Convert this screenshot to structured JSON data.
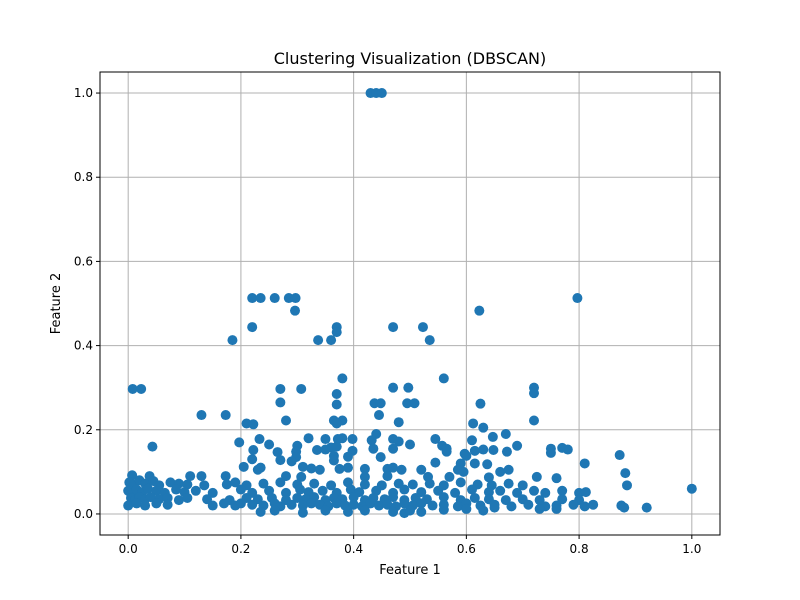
{
  "chart_data": {
    "type": "scatter",
    "title": "Clustering Visualization (DBSCAN)",
    "xlabel": "Feature 1",
    "ylabel": "Feature 2",
    "xlim": [
      -0.05,
      1.05
    ],
    "ylim": [
      -0.05,
      1.05
    ],
    "xticks": [
      0.0,
      0.2,
      0.4,
      0.6,
      0.8,
      1.0
    ],
    "yticks": [
      0.0,
      0.2,
      0.4,
      0.6,
      0.8,
      1.0
    ],
    "xtick_labels": [
      "0.0",
      "0.2",
      "0.4",
      "0.6",
      "0.8",
      "1.0"
    ],
    "ytick_labels": [
      "0.0",
      "0.2",
      "0.4",
      "0.6",
      "0.8",
      "1.0"
    ],
    "grid": true,
    "color": "#1f77b4",
    "points": [
      [
        0.43,
        1.0
      ],
      [
        0.44,
        1.0
      ],
      [
        0.45,
        1.0
      ],
      [
        0.22,
        0.513
      ],
      [
        0.235,
        0.513
      ],
      [
        0.26,
        0.513
      ],
      [
        0.285,
        0.513
      ],
      [
        0.297,
        0.513
      ],
      [
        0.797,
        0.513
      ],
      [
        0.296,
        0.483
      ],
      [
        0.623,
        0.483
      ],
      [
        0.22,
        0.444
      ],
      [
        0.37,
        0.444
      ],
      [
        0.47,
        0.444
      ],
      [
        0.523,
        0.444
      ],
      [
        0.37,
        0.432
      ],
      [
        0.185,
        0.413
      ],
      [
        0.337,
        0.413
      ],
      [
        0.36,
        0.413
      ],
      [
        0.535,
        0.413
      ],
      [
        0.38,
        0.322
      ],
      [
        0.56,
        0.322
      ],
      [
        0.008,
        0.297
      ],
      [
        0.023,
        0.297
      ],
      [
        0.27,
        0.297
      ],
      [
        0.307,
        0.297
      ],
      [
        0.47,
        0.3
      ],
      [
        0.497,
        0.3
      ],
      [
        0.72,
        0.3
      ],
      [
        0.72,
        0.287
      ],
      [
        0.37,
        0.285
      ],
      [
        0.437,
        0.263
      ],
      [
        0.448,
        0.263
      ],
      [
        0.495,
        0.263
      ],
      [
        0.508,
        0.263
      ],
      [
        0.625,
        0.262
      ],
      [
        0.27,
        0.265
      ],
      [
        0.37,
        0.26
      ],
      [
        0.13,
        0.235
      ],
      [
        0.173,
        0.235
      ],
      [
        0.445,
        0.235
      ],
      [
        0.28,
        0.222
      ],
      [
        0.365,
        0.222
      ],
      [
        0.38,
        0.222
      ],
      [
        0.48,
        0.218
      ],
      [
        0.72,
        0.222
      ],
      [
        0.21,
        0.215
      ],
      [
        0.222,
        0.213
      ],
      [
        0.37,
        0.215
      ],
      [
        0.612,
        0.215
      ],
      [
        0.63,
        0.205
      ],
      [
        0.44,
        0.19
      ],
      [
        0.67,
        0.19
      ],
      [
        0.38,
        0.18
      ],
      [
        0.233,
        0.178
      ],
      [
        0.32,
        0.18
      ],
      [
        0.35,
        0.178
      ],
      [
        0.372,
        0.178
      ],
      [
        0.398,
        0.178
      ],
      [
        0.432,
        0.175
      ],
      [
        0.47,
        0.178
      ],
      [
        0.48,
        0.172
      ],
      [
        0.545,
        0.178
      ],
      [
        0.61,
        0.175
      ],
      [
        0.647,
        0.183
      ],
      [
        0.043,
        0.16
      ],
      [
        0.197,
        0.17
      ],
      [
        0.25,
        0.165
      ],
      [
        0.3,
        0.162
      ],
      [
        0.36,
        0.158
      ],
      [
        0.37,
        0.16
      ],
      [
        0.5,
        0.165
      ],
      [
        0.557,
        0.162
      ],
      [
        0.565,
        0.155
      ],
      [
        0.69,
        0.162
      ],
      [
        0.75,
        0.155
      ],
      [
        0.77,
        0.157
      ],
      [
        0.78,
        0.153
      ],
      [
        0.222,
        0.152
      ],
      [
        0.265,
        0.147
      ],
      [
        0.298,
        0.148
      ],
      [
        0.335,
        0.152
      ],
      [
        0.35,
        0.153
      ],
      [
        0.398,
        0.15
      ],
      [
        0.435,
        0.155
      ],
      [
        0.47,
        0.155
      ],
      [
        0.565,
        0.148
      ],
      [
        0.597,
        0.143
      ],
      [
        0.615,
        0.15
      ],
      [
        0.63,
        0.153
      ],
      [
        0.648,
        0.152
      ],
      [
        0.672,
        0.148
      ],
      [
        0.75,
        0.145
      ],
      [
        0.872,
        0.14
      ],
      [
        0.365,
        0.138
      ],
      [
        0.298,
        0.135
      ],
      [
        0.39,
        0.136
      ],
      [
        0.448,
        0.135
      ],
      [
        0.6,
        0.138
      ],
      [
        0.22,
        0.13
      ],
      [
        0.27,
        0.128
      ],
      [
        0.29,
        0.125
      ],
      [
        0.365,
        0.127
      ],
      [
        0.545,
        0.122
      ],
      [
        0.59,
        0.12
      ],
      [
        0.615,
        0.12
      ],
      [
        0.637,
        0.118
      ],
      [
        0.81,
        0.12
      ],
      [
        0.205,
        0.112
      ],
      [
        0.23,
        0.105
      ],
      [
        0.235,
        0.11
      ],
      [
        0.31,
        0.112
      ],
      [
        0.325,
        0.108
      ],
      [
        0.34,
        0.105
      ],
      [
        0.375,
        0.107
      ],
      [
        0.39,
        0.11
      ],
      [
        0.42,
        0.107
      ],
      [
        0.46,
        0.107
      ],
      [
        0.47,
        0.11
      ],
      [
        0.485,
        0.105
      ],
      [
        0.52,
        0.105
      ],
      [
        0.585,
        0.105
      ],
      [
        0.595,
        0.1
      ],
      [
        0.66,
        0.1
      ],
      [
        0.675,
        0.105
      ],
      [
        0.882,
        0.097
      ],
      [
        0.007,
        0.092
      ],
      [
        0.038,
        0.09
      ],
      [
        0.11,
        0.09
      ],
      [
        0.13,
        0.09
      ],
      [
        0.173,
        0.09
      ],
      [
        0.28,
        0.09
      ],
      [
        0.307,
        0.088
      ],
      [
        0.42,
        0.088
      ],
      [
        0.46,
        0.09
      ],
      [
        0.532,
        0.088
      ],
      [
        0.57,
        0.088
      ],
      [
        0.64,
        0.087
      ],
      [
        0.725,
        0.088
      ],
      [
        0.76,
        0.085
      ],
      [
        0.002,
        0.075
      ],
      [
        0.01,
        0.07
      ],
      [
        0.02,
        0.08
      ],
      [
        0.03,
        0.072
      ],
      [
        0.045,
        0.078
      ],
      [
        0.055,
        0.068
      ],
      [
        0.075,
        0.075
      ],
      [
        0.09,
        0.072
      ],
      [
        0.105,
        0.07
      ],
      [
        0.135,
        0.068
      ],
      [
        0.175,
        0.07
      ],
      [
        0.19,
        0.075
      ],
      [
        0.21,
        0.068
      ],
      [
        0.24,
        0.072
      ],
      [
        0.27,
        0.075
      ],
      [
        0.3,
        0.07
      ],
      [
        0.33,
        0.072
      ],
      [
        0.36,
        0.068
      ],
      [
        0.39,
        0.075
      ],
      [
        0.42,
        0.07
      ],
      [
        0.45,
        0.068
      ],
      [
        0.48,
        0.072
      ],
      [
        0.505,
        0.07
      ],
      [
        0.535,
        0.072
      ],
      [
        0.56,
        0.068
      ],
      [
        0.59,
        0.075
      ],
      [
        0.62,
        0.07
      ],
      [
        0.645,
        0.068
      ],
      [
        0.675,
        0.072
      ],
      [
        0.7,
        0.068
      ],
      [
        0.885,
        0.068
      ],
      [
        0.0,
        0.055
      ],
      [
        0.008,
        0.05
      ],
      [
        0.015,
        0.058
      ],
      [
        0.025,
        0.052
      ],
      [
        0.035,
        0.06
      ],
      [
        0.05,
        0.055
      ],
      [
        0.065,
        0.05
      ],
      [
        0.085,
        0.058
      ],
      [
        0.1,
        0.052
      ],
      [
        0.12,
        0.055
      ],
      [
        0.15,
        0.05
      ],
      [
        0.2,
        0.058
      ],
      [
        0.22,
        0.05
      ],
      [
        0.25,
        0.055
      ],
      [
        0.28,
        0.05
      ],
      [
        0.305,
        0.058
      ],
      [
        0.32,
        0.052
      ],
      [
        0.345,
        0.055
      ],
      [
        0.37,
        0.05
      ],
      [
        0.395,
        0.058
      ],
      [
        0.41,
        0.052
      ],
      [
        0.44,
        0.055
      ],
      [
        0.47,
        0.05
      ],
      [
        0.49,
        0.058
      ],
      [
        0.52,
        0.052
      ],
      [
        0.55,
        0.055
      ],
      [
        0.58,
        0.05
      ],
      [
        0.61,
        0.058
      ],
      [
        0.64,
        0.052
      ],
      [
        0.66,
        0.055
      ],
      [
        0.69,
        0.05
      ],
      [
        0.72,
        0.055
      ],
      [
        0.74,
        0.05
      ],
      [
        0.77,
        0.055
      ],
      [
        0.8,
        0.05
      ],
      [
        0.812,
        0.052
      ],
      [
        1.0,
        0.06
      ],
      [
        0.005,
        0.038
      ],
      [
        0.012,
        0.033
      ],
      [
        0.02,
        0.04
      ],
      [
        0.03,
        0.035
      ],
      [
        0.04,
        0.04
      ],
      [
        0.055,
        0.035
      ],
      [
        0.07,
        0.038
      ],
      [
        0.09,
        0.033
      ],
      [
        0.105,
        0.038
      ],
      [
        0.14,
        0.035
      ],
      [
        0.18,
        0.033
      ],
      [
        0.21,
        0.038
      ],
      [
        0.23,
        0.035
      ],
      [
        0.255,
        0.038
      ],
      [
        0.28,
        0.033
      ],
      [
        0.3,
        0.038
      ],
      [
        0.315,
        0.035
      ],
      [
        0.33,
        0.04
      ],
      [
        0.35,
        0.033
      ],
      [
        0.365,
        0.038
      ],
      [
        0.38,
        0.035
      ],
      [
        0.4,
        0.04
      ],
      [
        0.42,
        0.033
      ],
      [
        0.435,
        0.038
      ],
      [
        0.455,
        0.035
      ],
      [
        0.47,
        0.04
      ],
      [
        0.49,
        0.033
      ],
      [
        0.51,
        0.038
      ],
      [
        0.53,
        0.035
      ],
      [
        0.56,
        0.04
      ],
      [
        0.59,
        0.033
      ],
      [
        0.615,
        0.038
      ],
      [
        0.64,
        0.035
      ],
      [
        0.67,
        0.033
      ],
      [
        0.7,
        0.035
      ],
      [
        0.73,
        0.033
      ],
      [
        0.77,
        0.035
      ],
      [
        0.8,
        0.033
      ],
      [
        0.0,
        0.02
      ],
      [
        0.015,
        0.025
      ],
      [
        0.03,
        0.02
      ],
      [
        0.05,
        0.025
      ],
      [
        0.07,
        0.022
      ],
      [
        0.15,
        0.02
      ],
      [
        0.17,
        0.025
      ],
      [
        0.19,
        0.02
      ],
      [
        0.2,
        0.025
      ],
      [
        0.22,
        0.022
      ],
      [
        0.24,
        0.02
      ],
      [
        0.26,
        0.025
      ],
      [
        0.27,
        0.018
      ],
      [
        0.29,
        0.022
      ],
      [
        0.31,
        0.02
      ],
      [
        0.325,
        0.025
      ],
      [
        0.34,
        0.022
      ],
      [
        0.355,
        0.018
      ],
      [
        0.37,
        0.025
      ],
      [
        0.385,
        0.02
      ],
      [
        0.4,
        0.022
      ],
      [
        0.415,
        0.018
      ],
      [
        0.43,
        0.025
      ],
      [
        0.445,
        0.02
      ],
      [
        0.46,
        0.022
      ],
      [
        0.475,
        0.018
      ],
      [
        0.49,
        0.025
      ],
      [
        0.505,
        0.02
      ],
      [
        0.52,
        0.025
      ],
      [
        0.54,
        0.02
      ],
      [
        0.56,
        0.022
      ],
      [
        0.585,
        0.018
      ],
      [
        0.6,
        0.025
      ],
      [
        0.625,
        0.02
      ],
      [
        0.65,
        0.022
      ],
      [
        0.68,
        0.018
      ],
      [
        0.71,
        0.022
      ],
      [
        0.74,
        0.018
      ],
      [
        0.76,
        0.02
      ],
      [
        0.79,
        0.022
      ],
      [
        0.81,
        0.018
      ],
      [
        0.825,
        0.022
      ],
      [
        0.875,
        0.02
      ],
      [
        0.88,
        0.015
      ],
      [
        0.92,
        0.015
      ],
      [
        0.235,
        0.005
      ],
      [
        0.26,
        0.008
      ],
      [
        0.31,
        0.003
      ],
      [
        0.35,
        0.008
      ],
      [
        0.39,
        0.005
      ],
      [
        0.42,
        0.008
      ],
      [
        0.47,
        0.005
      ],
      [
        0.49,
        0.002
      ],
      [
        0.5,
        0.008
      ],
      [
        0.52,
        0.005
      ],
      [
        0.56,
        0.01
      ],
      [
        0.6,
        0.012
      ],
      [
        0.63,
        0.008
      ],
      [
        0.65,
        0.015
      ],
      [
        0.73,
        0.012
      ],
      [
        0.76,
        0.012
      ]
    ]
  }
}
